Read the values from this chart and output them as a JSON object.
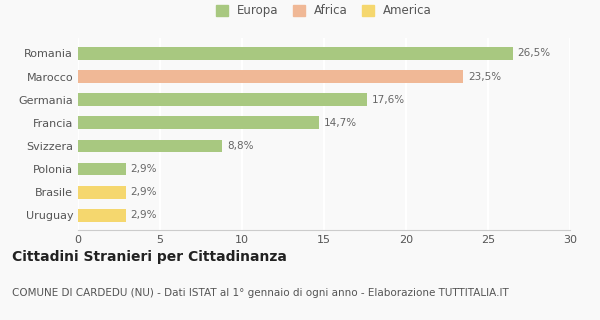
{
  "categories": [
    "Uruguay",
    "Brasile",
    "Polonia",
    "Svizzera",
    "Francia",
    "Germania",
    "Marocco",
    "Romania"
  ],
  "values": [
    2.9,
    2.9,
    2.9,
    8.8,
    14.7,
    17.6,
    23.5,
    26.5
  ],
  "labels": [
    "2,9%",
    "2,9%",
    "2,9%",
    "8,8%",
    "14,7%",
    "17,6%",
    "23,5%",
    "26,5%"
  ],
  "colors": [
    "#f5d76e",
    "#f5d76e",
    "#a8c880",
    "#a8c880",
    "#a8c880",
    "#a8c880",
    "#f0b896",
    "#a8c880"
  ],
  "continent": [
    "America",
    "America",
    "Europa",
    "Europa",
    "Europa",
    "Europa",
    "Africa",
    "Europa"
  ],
  "legend_labels": [
    "Europa",
    "Africa",
    "America"
  ],
  "legend_colors": [
    "#a8c880",
    "#f0b896",
    "#f5d76e"
  ],
  "xlim": [
    0,
    30
  ],
  "xticks": [
    0,
    5,
    10,
    15,
    20,
    25,
    30
  ],
  "title": "Cittadini Stranieri per Cittadinanza",
  "subtitle": "COMUNE DI CARDEDU (NU) - Dati ISTAT al 1° gennaio di ogni anno - Elaborazione TUTTITALIA.IT",
  "bg_color": "#f9f9f9",
  "grid_color": "#ffffff",
  "bar_height": 0.55,
  "title_fontsize": 10,
  "subtitle_fontsize": 7.5,
  "label_fontsize": 7.5,
  "tick_fontsize": 8,
  "legend_fontsize": 8.5
}
